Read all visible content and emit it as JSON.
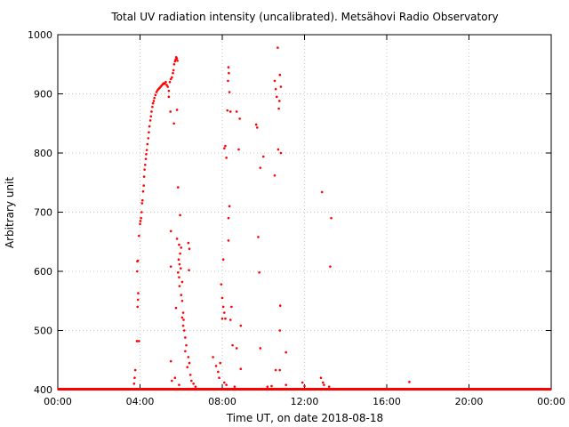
{
  "chart_data": {
    "type": "scatter",
    "title": "Total UV radiation intensity (uncalibrated). Metsähovi Radio Observatory",
    "xlabel": "Time UT, on date 2018-08-18",
    "ylabel": "Arbitrary unit",
    "xlim": [
      0,
      24
    ],
    "ylim": [
      400,
      1000
    ],
    "xticks": [
      0,
      4,
      8,
      12,
      16,
      20,
      24
    ],
    "xtick_labels": [
      "00:00",
      "04:00",
      "08:00",
      "12:00",
      "16:00",
      "20:00",
      "00:00"
    ],
    "yticks": [
      400,
      500,
      600,
      700,
      800,
      900,
      1000
    ],
    "ytick_labels": [
      "400",
      "500",
      "600",
      "700",
      "800",
      "900",
      "1000"
    ],
    "grid": true,
    "marker_color": "#ff0000",
    "baseline": {
      "y": 400,
      "x_start": 0,
      "x_end": 24
    },
    "points": [
      {
        "x": 3.71,
        "y": 410
      },
      {
        "x": 3.74,
        "y": 420
      },
      {
        "x": 3.77,
        "y": 433
      },
      {
        "x": 3.85,
        "y": 482
      },
      {
        "x": 3.95,
        "y": 482
      },
      {
        "x": 3.88,
        "y": 540
      },
      {
        "x": 3.9,
        "y": 552
      },
      {
        "x": 3.91,
        "y": 563
      },
      {
        "x": 3.86,
        "y": 600
      },
      {
        "x": 3.87,
        "y": 617
      },
      {
        "x": 3.9,
        "y": 618
      },
      {
        "x": 3.95,
        "y": 660
      },
      {
        "x": 4.0,
        "y": 680
      },
      {
        "x": 4.02,
        "y": 685
      },
      {
        "x": 4.05,
        "y": 690
      },
      {
        "x": 4.08,
        "y": 700
      },
      {
        "x": 4.1,
        "y": 715
      },
      {
        "x": 4.12,
        "y": 720
      },
      {
        "x": 4.15,
        "y": 735
      },
      {
        "x": 4.18,
        "y": 745
      },
      {
        "x": 4.2,
        "y": 760
      },
      {
        "x": 4.22,
        "y": 772
      },
      {
        "x": 4.25,
        "y": 780
      },
      {
        "x": 4.28,
        "y": 790
      },
      {
        "x": 4.3,
        "y": 798
      },
      {
        "x": 4.33,
        "y": 805
      },
      {
        "x": 4.36,
        "y": 815
      },
      {
        "x": 4.4,
        "y": 825
      },
      {
        "x": 4.43,
        "y": 835
      },
      {
        "x": 4.46,
        "y": 845
      },
      {
        "x": 4.5,
        "y": 855
      },
      {
        "x": 4.53,
        "y": 862
      },
      {
        "x": 4.56,
        "y": 870
      },
      {
        "x": 4.6,
        "y": 878
      },
      {
        "x": 4.63,
        "y": 884
      },
      {
        "x": 4.67,
        "y": 888
      },
      {
        "x": 4.7,
        "y": 893
      },
      {
        "x": 4.75,
        "y": 898
      },
      {
        "x": 4.8,
        "y": 903
      },
      {
        "x": 4.85,
        "y": 906
      },
      {
        "x": 4.9,
        "y": 908
      },
      {
        "x": 4.95,
        "y": 910
      },
      {
        "x": 5.0,
        "y": 912
      },
      {
        "x": 5.05,
        "y": 914
      },
      {
        "x": 5.1,
        "y": 916
      },
      {
        "x": 5.15,
        "y": 918
      },
      {
        "x": 5.2,
        "y": 917
      },
      {
        "x": 5.25,
        "y": 920
      },
      {
        "x": 5.3,
        "y": 915
      },
      {
        "x": 5.35,
        "y": 912
      },
      {
        "x": 5.4,
        "y": 905
      },
      {
        "x": 5.45,
        "y": 920
      },
      {
        "x": 5.5,
        "y": 925
      },
      {
        "x": 5.55,
        "y": 928
      },
      {
        "x": 5.6,
        "y": 935
      },
      {
        "x": 5.63,
        "y": 940
      },
      {
        "x": 5.66,
        "y": 950
      },
      {
        "x": 5.7,
        "y": 955
      },
      {
        "x": 5.73,
        "y": 958
      },
      {
        "x": 5.76,
        "y": 962
      },
      {
        "x": 5.79,
        "y": 960
      },
      {
        "x": 5.82,
        "y": 956
      },
      {
        "x": 5.4,
        "y": 895
      },
      {
        "x": 5.48,
        "y": 870
      },
      {
        "x": 5.65,
        "y": 850
      },
      {
        "x": 5.8,
        "y": 873
      },
      {
        "x": 5.85,
        "y": 742
      },
      {
        "x": 5.95,
        "y": 695
      },
      {
        "x": 5.5,
        "y": 668
      },
      {
        "x": 5.8,
        "y": 655
      },
      {
        "x": 5.9,
        "y": 645
      },
      {
        "x": 6.0,
        "y": 640
      },
      {
        "x": 5.95,
        "y": 630
      },
      {
        "x": 5.88,
        "y": 620
      },
      {
        "x": 5.92,
        "y": 612
      },
      {
        "x": 5.98,
        "y": 605
      },
      {
        "x": 5.5,
        "y": 608
      },
      {
        "x": 5.85,
        "y": 598
      },
      {
        "x": 5.9,
        "y": 590
      },
      {
        "x": 6.05,
        "y": 582
      },
      {
        "x": 5.92,
        "y": 575
      },
      {
        "x": 6.0,
        "y": 560
      },
      {
        "x": 6.05,
        "y": 550
      },
      {
        "x": 5.75,
        "y": 538
      },
      {
        "x": 6.1,
        "y": 530
      },
      {
        "x": 6.05,
        "y": 522
      },
      {
        "x": 6.12,
        "y": 518
      },
      {
        "x": 6.1,
        "y": 508
      },
      {
        "x": 6.15,
        "y": 500
      },
      {
        "x": 6.2,
        "y": 488
      },
      {
        "x": 6.25,
        "y": 475
      },
      {
        "x": 6.2,
        "y": 465
      },
      {
        "x": 6.35,
        "y": 648
      },
      {
        "x": 6.4,
        "y": 638
      },
      {
        "x": 6.38,
        "y": 602
      },
      {
        "x": 6.35,
        "y": 455
      },
      {
        "x": 6.4,
        "y": 445
      },
      {
        "x": 6.3,
        "y": 438
      },
      {
        "x": 6.45,
        "y": 425
      },
      {
        "x": 6.5,
        "y": 415
      },
      {
        "x": 6.6,
        "y": 410
      },
      {
        "x": 6.7,
        "y": 405
      },
      {
        "x": 5.5,
        "y": 448
      },
      {
        "x": 5.55,
        "y": 415
      },
      {
        "x": 5.7,
        "y": 420
      },
      {
        "x": 5.9,
        "y": 408
      },
      {
        "x": 7.55,
        "y": 455
      },
      {
        "x": 7.7,
        "y": 440
      },
      {
        "x": 7.8,
        "y": 430
      },
      {
        "x": 7.85,
        "y": 420
      },
      {
        "x": 7.9,
        "y": 445
      },
      {
        "x": 7.95,
        "y": 578
      },
      {
        "x": 8.0,
        "y": 555
      },
      {
        "x": 8.05,
        "y": 540
      },
      {
        "x": 8.0,
        "y": 520
      },
      {
        "x": 8.1,
        "y": 530
      },
      {
        "x": 8.15,
        "y": 520
      },
      {
        "x": 8.05,
        "y": 620
      },
      {
        "x": 8.1,
        "y": 808
      },
      {
        "x": 8.15,
        "y": 812
      },
      {
        "x": 8.2,
        "y": 792
      },
      {
        "x": 8.25,
        "y": 872
      },
      {
        "x": 8.3,
        "y": 945
      },
      {
        "x": 8.32,
        "y": 935
      },
      {
        "x": 8.28,
        "y": 922
      },
      {
        "x": 8.35,
        "y": 903
      },
      {
        "x": 8.4,
        "y": 870
      },
      {
        "x": 8.35,
        "y": 710
      },
      {
        "x": 8.3,
        "y": 690
      },
      {
        "x": 8.3,
        "y": 652
      },
      {
        "x": 8.45,
        "y": 540
      },
      {
        "x": 8.4,
        "y": 518
      },
      {
        "x": 8.5,
        "y": 475
      },
      {
        "x": 8.7,
        "y": 870
      },
      {
        "x": 8.85,
        "y": 858
      },
      {
        "x": 8.8,
        "y": 806
      },
      {
        "x": 8.9,
        "y": 508
      },
      {
        "x": 8.7,
        "y": 470
      },
      {
        "x": 8.9,
        "y": 435
      },
      {
        "x": 8.1,
        "y": 412
      },
      {
        "x": 8.2,
        "y": 408
      },
      {
        "x": 8.6,
        "y": 405
      },
      {
        "x": 9.65,
        "y": 848
      },
      {
        "x": 9.7,
        "y": 843
      },
      {
        "x": 9.85,
        "y": 775
      },
      {
        "x": 10.0,
        "y": 794
      },
      {
        "x": 9.75,
        "y": 658
      },
      {
        "x": 9.8,
        "y": 598
      },
      {
        "x": 9.85,
        "y": 470
      },
      {
        "x": 10.2,
        "y": 405
      },
      {
        "x": 10.55,
        "y": 922
      },
      {
        "x": 10.6,
        "y": 908
      },
      {
        "x": 10.65,
        "y": 895
      },
      {
        "x": 10.7,
        "y": 978
      },
      {
        "x": 10.8,
        "y": 932
      },
      {
        "x": 10.85,
        "y": 912
      },
      {
        "x": 10.78,
        "y": 888
      },
      {
        "x": 10.75,
        "y": 875
      },
      {
        "x": 10.72,
        "y": 806
      },
      {
        "x": 10.85,
        "y": 800
      },
      {
        "x": 10.55,
        "y": 762
      },
      {
        "x": 10.82,
        "y": 542
      },
      {
        "x": 10.8,
        "y": 500
      },
      {
        "x": 10.6,
        "y": 433
      },
      {
        "x": 10.8,
        "y": 433
      },
      {
        "x": 11.1,
        "y": 463
      },
      {
        "x": 11.1,
        "y": 408
      },
      {
        "x": 10.4,
        "y": 406
      },
      {
        "x": 11.9,
        "y": 412
      },
      {
        "x": 12.0,
        "y": 406
      },
      {
        "x": 12.85,
        "y": 734
      },
      {
        "x": 13.3,
        "y": 690
      },
      {
        "x": 13.25,
        "y": 608
      },
      {
        "x": 12.8,
        "y": 420
      },
      {
        "x": 12.9,
        "y": 412
      },
      {
        "x": 12.95,
        "y": 408
      },
      {
        "x": 13.2,
        "y": 405
      },
      {
        "x": 17.1,
        "y": 413
      }
    ]
  }
}
